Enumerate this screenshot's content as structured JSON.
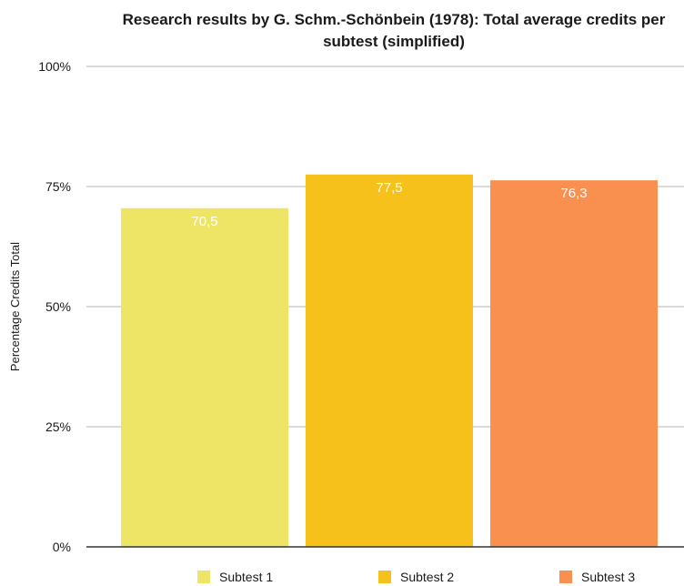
{
  "chart_data": {
    "type": "bar",
    "title_lines": [
      "Research results by G. Schm.-Schönbein (1978): Total average credits per",
      "subtest (simplified)"
    ],
    "ylabel": "Percentage Credits Total",
    "xlabel": "",
    "ylim": [
      0,
      100
    ],
    "yticks": [
      0,
      25,
      50,
      75,
      100
    ],
    "ytick_labels": [
      "0%",
      "25%",
      "50%",
      "75%",
      "100%"
    ],
    "categories": [
      "Subtest 1",
      "Subtest 2",
      "Subtest 3"
    ],
    "values": [
      70.5,
      77.5,
      76.3
    ],
    "value_labels": [
      "70,5",
      "77,5",
      "76,3"
    ],
    "colors": [
      "#EEE566",
      "#F7C11B",
      "#FA9050"
    ],
    "grid": true,
    "legend_position": "bottom"
  }
}
